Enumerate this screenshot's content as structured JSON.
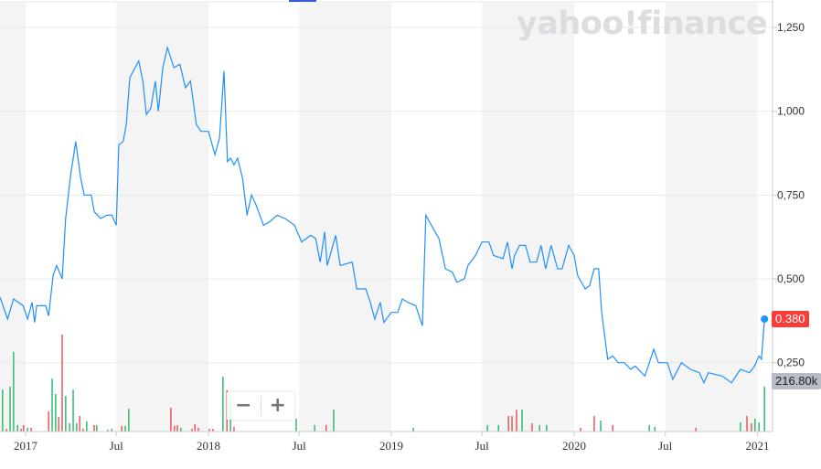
{
  "logo_text": "yahoo!finance",
  "colors": {
    "line": "#1e90ff",
    "up": "#2ebd6e",
    "down": "#f2545b",
    "band": "#f4f4f4",
    "grid": "#eaeaea",
    "price_badge": "#f73c3c",
    "volume_badge": "#b8bcc4"
  },
  "zoom": {
    "out_label": "−",
    "in_label": "+"
  },
  "chart_data": {
    "type": "line",
    "title": "",
    "xlabel": "",
    "ylabel": "",
    "ylim": [
      0.25,
      1.25
    ],
    "grid": true,
    "y_ticks": [
      {
        "value": 1.25,
        "label": "1,250"
      },
      {
        "value": 1.0,
        "label": "1,000"
      },
      {
        "value": 0.75,
        "label": "0,750"
      },
      {
        "value": 0.5,
        "label": "0,500"
      },
      {
        "value": 0.25,
        "label": "0,250"
      }
    ],
    "x_ticks": [
      {
        "date": "2017-01-01",
        "label": "2017"
      },
      {
        "date": "2017-07-01",
        "label": "Jul"
      },
      {
        "date": "2018-01-01",
        "label": "2018"
      },
      {
        "date": "2018-07-01",
        "label": "Jul"
      },
      {
        "date": "2019-01-01",
        "label": "2019"
      },
      {
        "date": "2019-07-01",
        "label": "Jul"
      },
      {
        "date": "2020-01-01",
        "label": "2020"
      },
      {
        "date": "2020-07-01",
        "label": "Jul"
      },
      {
        "date": "2021-01-01",
        "label": "2021"
      }
    ],
    "last_price": {
      "value": 0.38,
      "label": "0.380"
    },
    "last_volume": {
      "value": 216.8,
      "label": "216.80k"
    },
    "price_series": [
      [
        "2016-11-11",
        0.445
      ],
      [
        "2016-11-26",
        0.38
      ],
      [
        "2016-12-08",
        0.44
      ],
      [
        "2016-12-27",
        0.42
      ],
      [
        "2017-01-05",
        0.38
      ],
      [
        "2017-01-14",
        0.43
      ],
      [
        "2017-01-19",
        0.37
      ],
      [
        "2017-01-23",
        0.42
      ],
      [
        "2017-02-10",
        0.42
      ],
      [
        "2017-02-16",
        0.39
      ],
      [
        "2017-02-25",
        0.51
      ],
      [
        "2017-03-04",
        0.54
      ],
      [
        "2017-03-15",
        0.5
      ],
      [
        "2017-03-22",
        0.68
      ],
      [
        "2017-03-31",
        0.8
      ],
      [
        "2017-04-11",
        0.91
      ],
      [
        "2017-04-21",
        0.8
      ],
      [
        "2017-04-28",
        0.75
      ],
      [
        "2017-05-12",
        0.75
      ],
      [
        "2017-05-18",
        0.7
      ],
      [
        "2017-05-31",
        0.68
      ],
      [
        "2017-06-12",
        0.69
      ],
      [
        "2017-06-22",
        0.69
      ],
      [
        "2017-07-01",
        0.66
      ],
      [
        "2017-07-06",
        0.9
      ],
      [
        "2017-07-15",
        0.91
      ],
      [
        "2017-07-21",
        0.96
      ],
      [
        "2017-07-28",
        1.1
      ],
      [
        "2017-08-04",
        1.12
      ],
      [
        "2017-08-15",
        1.15
      ],
      [
        "2017-08-23",
        1.09
      ],
      [
        "2017-08-30",
        0.99
      ],
      [
        "2017-09-08",
        1.01
      ],
      [
        "2017-09-17",
        1.09
      ],
      [
        "2017-09-23",
        1.0
      ],
      [
        "2017-10-02",
        1.13
      ],
      [
        "2017-10-11",
        1.19
      ],
      [
        "2017-10-24",
        1.13
      ],
      [
        "2017-11-05",
        1.14
      ],
      [
        "2017-11-16",
        1.07
      ],
      [
        "2017-11-26",
        1.09
      ],
      [
        "2017-12-08",
        0.96
      ],
      [
        "2017-12-17",
        0.94
      ],
      [
        "2018-01-01",
        0.94
      ],
      [
        "2018-01-14",
        0.87
      ],
      [
        "2018-01-23",
        0.92
      ],
      [
        "2018-02-01",
        1.12
      ],
      [
        "2018-02-08",
        0.85
      ],
      [
        "2018-02-14",
        0.86
      ],
      [
        "2018-02-21",
        0.84
      ],
      [
        "2018-02-28",
        0.86
      ],
      [
        "2018-03-10",
        0.8
      ],
      [
        "2018-03-19",
        0.69
      ],
      [
        "2018-03-28",
        0.75
      ],
      [
        "2018-04-06",
        0.72
      ],
      [
        "2018-04-21",
        0.66
      ],
      [
        "2018-05-03",
        0.67
      ],
      [
        "2018-05-18",
        0.69
      ],
      [
        "2018-06-03",
        0.68
      ],
      [
        "2018-06-22",
        0.66
      ],
      [
        "2018-07-06",
        0.61
      ],
      [
        "2018-07-24",
        0.63
      ],
      [
        "2018-08-03",
        0.62
      ],
      [
        "2018-08-12",
        0.55
      ],
      [
        "2018-08-21",
        0.64
      ],
      [
        "2018-08-26",
        0.54
      ],
      [
        "2018-09-12",
        0.63
      ],
      [
        "2018-09-21",
        0.54
      ],
      [
        "2018-10-15",
        0.55
      ],
      [
        "2018-10-24",
        0.47
      ],
      [
        "2018-11-11",
        0.47
      ],
      [
        "2018-11-20",
        0.43
      ],
      [
        "2018-11-29",
        0.38
      ],
      [
        "2018-12-10",
        0.43
      ],
      [
        "2018-12-17",
        0.37
      ],
      [
        "2019-01-01",
        0.4
      ],
      [
        "2019-01-14",
        0.4
      ],
      [
        "2019-01-23",
        0.44
      ],
      [
        "2019-02-03",
        0.43
      ],
      [
        "2019-02-19",
        0.42
      ],
      [
        "2019-03-04",
        0.36
      ],
      [
        "2019-03-11",
        0.69
      ],
      [
        "2019-03-22",
        0.66
      ],
      [
        "2019-04-06",
        0.62
      ],
      [
        "2019-04-19",
        0.53
      ],
      [
        "2019-05-03",
        0.52
      ],
      [
        "2019-05-12",
        0.49
      ],
      [
        "2019-05-27",
        0.5
      ],
      [
        "2019-06-03",
        0.54
      ],
      [
        "2019-06-18",
        0.57
      ],
      [
        "2019-07-01",
        0.61
      ],
      [
        "2019-07-15",
        0.61
      ],
      [
        "2019-07-24",
        0.57
      ],
      [
        "2019-08-12",
        0.56
      ],
      [
        "2019-08-21",
        0.61
      ],
      [
        "2019-08-30",
        0.53
      ],
      [
        "2019-09-04",
        0.57
      ],
      [
        "2019-09-14",
        0.6
      ],
      [
        "2019-09-26",
        0.6
      ],
      [
        "2019-10-05",
        0.55
      ],
      [
        "2019-10-18",
        0.55
      ],
      [
        "2019-10-27",
        0.6
      ],
      [
        "2019-11-05",
        0.53
      ],
      [
        "2019-11-16",
        0.6
      ],
      [
        "2019-11-29",
        0.53
      ],
      [
        "2019-12-08",
        0.53
      ],
      [
        "2019-12-21",
        0.6
      ],
      [
        "2020-01-01",
        0.57
      ],
      [
        "2020-01-08",
        0.51
      ],
      [
        "2020-01-23",
        0.47
      ],
      [
        "2020-02-01",
        0.48
      ],
      [
        "2020-02-10",
        0.53
      ],
      [
        "2020-02-19",
        0.53
      ],
      [
        "2020-02-25",
        0.4
      ],
      [
        "2020-03-08",
        0.26
      ],
      [
        "2020-03-18",
        0.27
      ],
      [
        "2020-03-29",
        0.25
      ],
      [
        "2020-04-10",
        0.25
      ],
      [
        "2020-04-23",
        0.23
      ],
      [
        "2020-05-02",
        0.24
      ],
      [
        "2020-05-21",
        0.21
      ],
      [
        "2020-05-30",
        0.25
      ],
      [
        "2020-06-08",
        0.29
      ],
      [
        "2020-06-17",
        0.25
      ],
      [
        "2020-07-05",
        0.25
      ],
      [
        "2020-07-16",
        0.2
      ],
      [
        "2020-08-02",
        0.25
      ],
      [
        "2020-08-20",
        0.23
      ],
      [
        "2020-09-07",
        0.22
      ],
      [
        "2020-09-16",
        0.19
      ],
      [
        "2020-09-25",
        0.22
      ],
      [
        "2020-10-23",
        0.21
      ],
      [
        "2020-11-10",
        0.19
      ],
      [
        "2020-11-28",
        0.23
      ],
      [
        "2020-12-16",
        0.22
      ],
      [
        "2020-12-26",
        0.24
      ],
      [
        "2021-01-04",
        0.27
      ],
      [
        "2021-01-09",
        0.26
      ],
      [
        "2021-01-15",
        0.38
      ]
    ],
    "volume_series_k": [
      [
        "2016-11-16",
        203,
        "up"
      ],
      [
        "2016-11-24",
        13,
        "down"
      ],
      [
        "2016-12-01",
        217,
        "up"
      ],
      [
        "2016-12-08",
        385,
        "up"
      ],
      [
        "2016-12-16",
        31,
        "up"
      ],
      [
        "2016-12-23",
        13,
        "down"
      ],
      [
        "2016-12-28",
        31,
        "down"
      ],
      [
        "2017-01-05",
        18,
        "up"
      ],
      [
        "2017-01-12",
        18,
        "down"
      ],
      [
        "2017-02-16",
        97,
        "down"
      ],
      [
        "2017-02-23",
        256,
        "up"
      ],
      [
        "2017-03-02",
        181,
        "up"
      ],
      [
        "2017-03-08",
        71,
        "down"
      ],
      [
        "2017-03-15",
        469,
        "down"
      ],
      [
        "2017-03-22",
        172,
        "up"
      ],
      [
        "2017-03-30",
        40,
        "up"
      ],
      [
        "2017-04-06",
        203,
        "up"
      ],
      [
        "2017-04-13",
        40,
        "up"
      ],
      [
        "2017-04-19",
        75,
        "down"
      ],
      [
        "2017-04-26",
        13,
        "down"
      ],
      [
        "2017-05-03",
        49,
        "up"
      ],
      [
        "2017-05-18",
        31,
        "down"
      ],
      [
        "2017-05-23",
        31,
        "up"
      ],
      [
        "2017-06-14",
        9,
        "up"
      ],
      [
        "2017-06-22",
        13,
        "up"
      ],
      [
        "2017-07-12",
        27,
        "down"
      ],
      [
        "2017-07-19",
        27,
        "up"
      ],
      [
        "2017-07-26",
        110,
        "up"
      ],
      [
        "2017-10-18",
        115,
        "down"
      ],
      [
        "2017-10-25",
        27,
        "down"
      ],
      [
        "2017-10-31",
        31,
        "down"
      ],
      [
        "2017-11-07",
        18,
        "up"
      ],
      [
        "2017-11-29",
        13,
        "down"
      ],
      [
        "2017-12-05",
        35,
        "down"
      ],
      [
        "2017-12-12",
        18,
        "down"
      ],
      [
        "2018-01-03",
        13,
        "down"
      ],
      [
        "2018-01-10",
        13,
        "down"
      ],
      [
        "2018-01-30",
        265,
        "up"
      ],
      [
        "2018-02-07",
        199,
        "down"
      ],
      [
        "2018-02-14",
        172,
        "up"
      ],
      [
        "2018-02-21",
        22,
        "down"
      ],
      [
        "2018-06-25",
        62,
        "up"
      ],
      [
        "2018-08-01",
        31,
        "up"
      ],
      [
        "2018-08-24",
        31,
        "down"
      ],
      [
        "2018-09-08",
        106,
        "up"
      ],
      [
        "2019-02-14",
        18,
        "up"
      ],
      [
        "2019-07-12",
        31,
        "up"
      ],
      [
        "2019-08-03",
        31,
        "up"
      ],
      [
        "2019-08-23",
        75,
        "down"
      ],
      [
        "2019-08-30",
        75,
        "down"
      ],
      [
        "2019-09-08",
        106,
        "down"
      ],
      [
        "2019-09-19",
        106,
        "up"
      ],
      [
        "2019-10-09",
        40,
        "down"
      ],
      [
        "2019-10-24",
        31,
        "up"
      ],
      [
        "2019-11-07",
        31,
        "up"
      ],
      [
        "2020-01-14",
        18,
        "down"
      ],
      [
        "2020-02-10",
        75,
        "down"
      ],
      [
        "2020-02-23",
        53,
        "up"
      ],
      [
        "2020-03-18",
        31,
        "down"
      ],
      [
        "2020-05-30",
        31,
        "up"
      ],
      [
        "2020-06-10",
        22,
        "up"
      ],
      [
        "2020-08-31",
        18,
        "down"
      ],
      [
        "2020-11-28",
        44,
        "up"
      ],
      [
        "2020-12-11",
        75,
        "down"
      ],
      [
        "2020-12-20",
        40,
        "down"
      ],
      [
        "2020-12-27",
        62,
        "up"
      ],
      [
        "2021-01-04",
        44,
        "up"
      ],
      [
        "2021-01-15",
        216.8,
        "up"
      ]
    ]
  }
}
